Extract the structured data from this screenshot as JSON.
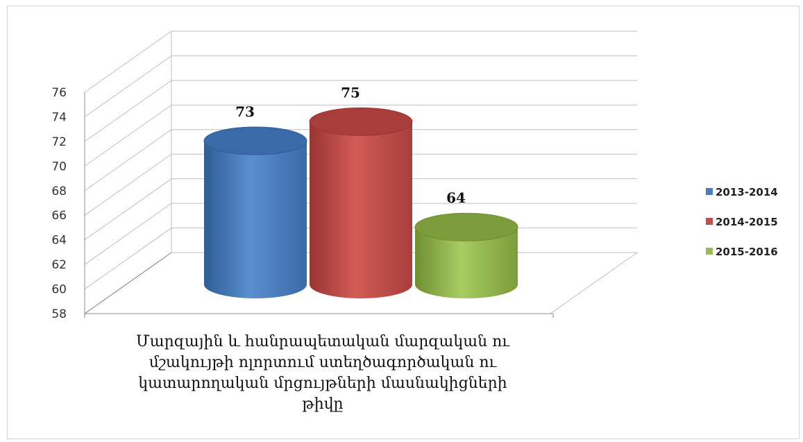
{
  "chart_data": {
    "type": "bar",
    "style": "3d-cylinder",
    "categories": [
      "Մարզային և հանրապետական մարզական ու մշակույթի ոլորտում ստեղծագործական ու կատարողական մրցույթների մասնակիցների թիվը"
    ],
    "category_label_lines": [
      "Մարզային և հանրապետական մարզական ու",
      "մշակույթի ոլորտում ստեղծագործական ու",
      "կատարողական մրցույթների մասնակիցների",
      "թիվը"
    ],
    "series": [
      {
        "name": "2013-2014",
        "values": [
          73
        ],
        "color": "#4a7ebb"
      },
      {
        "name": "2014-2015",
        "values": [
          75
        ],
        "color": "#c0504d"
      },
      {
        "name": "2015-2016",
        "values": [
          64
        ],
        "color": "#9bbb59"
      }
    ],
    "data_labels": [
      "73",
      "75",
      "64"
    ],
    "ylim": [
      58,
      76
    ],
    "yticks": [
      "58",
      "60",
      "62",
      "64",
      "66",
      "68",
      "70",
      "72",
      "74",
      "76"
    ],
    "grid": true,
    "legend_position": "right"
  }
}
